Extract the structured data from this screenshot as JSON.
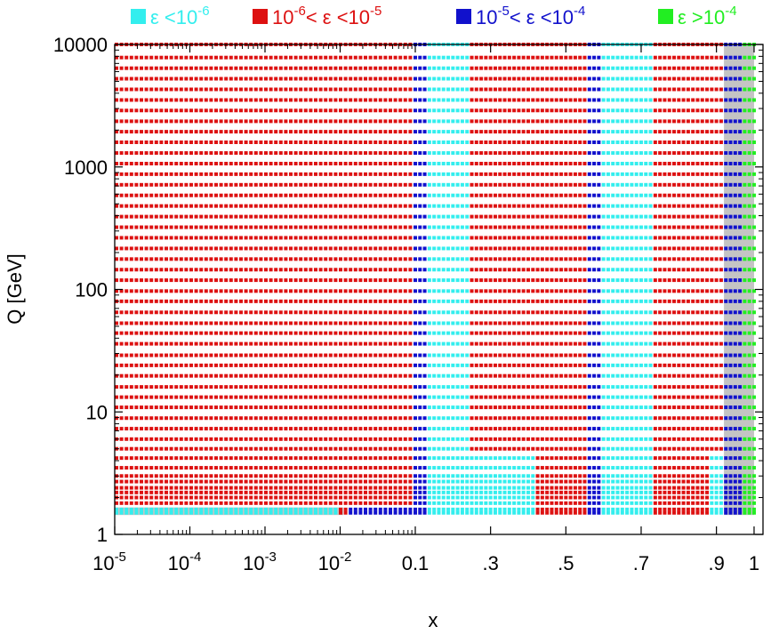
{
  "chart_data": {
    "type": "scatter",
    "xlabel": "x",
    "ylabel": "Q [GeV]",
    "x_scale": "piecewise",
    "x_range": [
      1e-05,
      1
    ],
    "y_scale": "log",
    "ylim": [
      1,
      10000
    ],
    "grid": false,
    "legend_placement": "top",
    "y_ticks": [
      {
        "value": 1,
        "label": "1"
      },
      {
        "value": 10,
        "label": "10"
      },
      {
        "value": 100,
        "label": "100"
      },
      {
        "value": 1000,
        "label": "1000"
      },
      {
        "value": 10000,
        "label": "10000"
      }
    ],
    "x_ticks": [
      {
        "value": 1e-05,
        "base": "10",
        "exp": "-5",
        "label": ""
      },
      {
        "value": 0.0001,
        "base": "10",
        "exp": "-4",
        "label": ""
      },
      {
        "value": 0.001,
        "base": "10",
        "exp": "-3",
        "label": ""
      },
      {
        "value": 0.01,
        "base": "10",
        "exp": "-2",
        "label": ""
      },
      {
        "value": 0.1,
        "label": "0.1"
      },
      {
        "value": 0.3,
        "label": ".3"
      },
      {
        "value": 0.5,
        "label": ".5"
      },
      {
        "value": 0.7,
        "label": ".7"
      },
      {
        "value": 0.9,
        "label": ".9"
      },
      {
        "value": 1,
        "label": "1"
      }
    ],
    "legend": [
      {
        "key": "c1",
        "color": "#33eeee",
        "parts": [
          {
            "t": "ε <10"
          },
          {
            "t": "-6",
            "sup": true
          }
        ]
      },
      {
        "key": "c2",
        "color": "#dd1111",
        "parts": [
          {
            "t": "10"
          },
          {
            "t": "-6",
            "sup": true
          },
          {
            "t": "< ε <10"
          },
          {
            "t": "-5",
            "sup": true
          }
        ]
      },
      {
        "key": "c3",
        "color": "#1111cc",
        "parts": [
          {
            "t": "10"
          },
          {
            "t": "-5",
            "sup": true
          },
          {
            "t": "< ε <10"
          },
          {
            "t": "-4",
            "sup": true
          }
        ]
      },
      {
        "key": "c4",
        "color": "#22ee22",
        "parts": [
          {
            "t": "ε >10"
          },
          {
            "t": "-4",
            "sup": true
          }
        ]
      }
    ],
    "q_rows": [
      1.5,
      1.6,
      1.8,
      2.0,
      2.2,
      2.4,
      2.7,
      3.0,
      3.5,
      4.2,
      5.0,
      6.0,
      7.3,
      8.9,
      10.9,
      13.2,
      16,
      19.7,
      24,
      29,
      36,
      44,
      53,
      65,
      80,
      97,
      119,
      145,
      177,
      216,
      264,
      322,
      393,
      480,
      586,
      715,
      873,
      1065,
      1300,
      1590,
      1940,
      2360,
      2890,
      3520,
      4300,
      5250,
      6400,
      7820,
      10000
    ],
    "accuracy_segments": [
      {
        "class": "c1",
        "x_from": 1e-05,
        "x_to": 0.009,
        "q_from": 1.5,
        "q_to": 1.62
      },
      {
        "class": "c2",
        "x_from": 0.009,
        "x_to": 0.012,
        "q_from": 1.5,
        "q_to": 1.62
      },
      {
        "class": "c3",
        "x_from": 0.012,
        "x_to": 0.13,
        "q_from": 1.5,
        "q_to": 1.62
      },
      {
        "class": "c2",
        "x_from": 1e-05,
        "x_to": 0.09,
        "q_from": 1.7,
        "q_to": 10000
      },
      {
        "class": "c3",
        "x_from": 0.09,
        "x_to": 0.13,
        "q_from": 1.7,
        "q_to": 10000
      },
      {
        "class": "c1",
        "x_from": 0.13,
        "x_to": 0.25,
        "q_from": 1.5,
        "q_to": 10000
      },
      {
        "class": "c1",
        "x_from": 0.25,
        "x_to": 0.42,
        "q_from": 1.5,
        "q_to": 4.5
      },
      {
        "class": "c2",
        "x_from": 0.25,
        "x_to": 0.42,
        "q_from": 4.9,
        "q_to": 10000
      },
      {
        "class": "c2",
        "x_from": 0.42,
        "x_to": 0.56,
        "q_from": 1.5,
        "q_to": 10000
      },
      {
        "class": "c3",
        "x_from": 0.56,
        "x_to": 0.6,
        "q_from": 1.5,
        "q_to": 10000
      },
      {
        "class": "c1",
        "x_from": 0.6,
        "x_to": 0.73,
        "q_from": 1.5,
        "q_to": 10000
      },
      {
        "class": "c2",
        "x_from": 0.73,
        "x_to": 0.88,
        "q_from": 1.5,
        "q_to": 10000
      },
      {
        "class": "c1",
        "x_from": 0.88,
        "x_to": 0.92,
        "q_from": 1.5,
        "q_to": 4.5
      },
      {
        "class": "c2",
        "x_from": 0.88,
        "x_to": 0.92,
        "q_from": 4.9,
        "q_to": 10000
      },
      {
        "class": "c3",
        "x_from": 0.92,
        "x_to": 0.965,
        "q_from": 1.5,
        "q_to": 10000
      },
      {
        "class": "c4",
        "x_from": 0.965,
        "x_to": 1.0,
        "q_from": 1.5,
        "q_to": 10000
      }
    ],
    "grey_highlight": [
      {
        "x_from": 1e-05,
        "x_to": 0.011,
        "q_from": 1.44,
        "q_to": 1.66
      },
      {
        "x_from": 0.92,
        "x_to": 1.0,
        "q_from": 1.44,
        "q_to": 10000
      }
    ]
  }
}
